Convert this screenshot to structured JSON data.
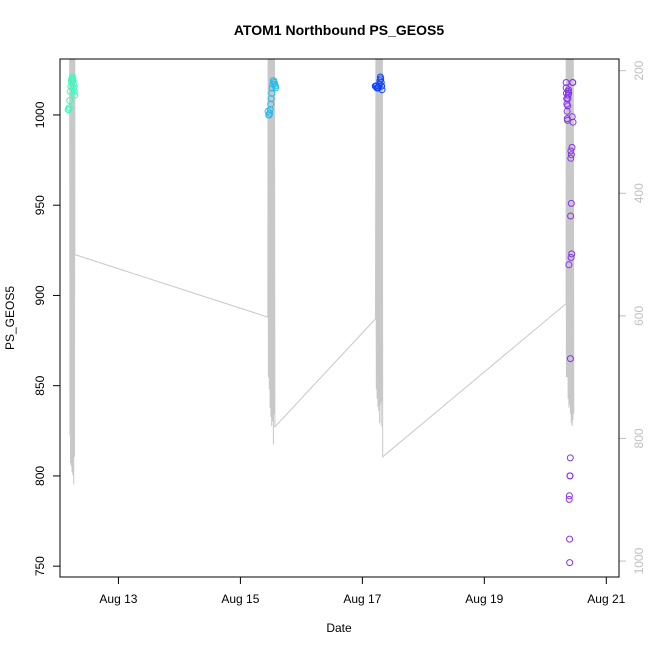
{
  "chart_data": {
    "type": "scatter",
    "title": "ATOM1 Northbound PS_GEOS5",
    "xlabel": "Date",
    "ylabel": "PS_GEOS5",
    "xlim": [
      "2015-08-12T01:00",
      "2015-08-21T05:00"
    ],
    "ylim": [
      744,
      1031
    ],
    "y_right_lim": [
      1026,
      181
    ],
    "x_tick_labels": [
      {
        "x": "2015-08-13T00:00",
        "label": "Aug 13"
      },
      {
        "x": "2015-08-15T00:00",
        "label": "Aug 15"
      },
      {
        "x": "2015-08-17T00:00",
        "label": "Aug 17"
      },
      {
        "x": "2015-08-19T00:00",
        "label": "Aug 19"
      },
      {
        "x": "2015-08-21T00:00",
        "label": "Aug 21"
      }
    ],
    "y_ticks": [
      750,
      800,
      850,
      900,
      950,
      1000
    ],
    "y_right_ticks": [
      200,
      400,
      600,
      800,
      1000
    ],
    "grid": false,
    "right_axis_color": "#c0c0c0",
    "line_series": {
      "color": "#c8c8c8",
      "points": [
        [
          "2015-08-12T04:48",
          181
        ],
        [
          "2015-08-12T04:53",
          795
        ],
        [
          "2015-08-12T04:58",
          181
        ],
        [
          "2015-08-12T05:07",
          840
        ],
        [
          "2015-08-12T05:17",
          181
        ],
        [
          "2015-08-12T05:24",
          845
        ],
        [
          "2015-08-12T05:34",
          181
        ],
        [
          "2015-08-12T05:43",
          855
        ],
        [
          "2015-08-12T05:55",
          181
        ],
        [
          "2015-08-12T06:05",
          860
        ],
        [
          "2015-08-12T06:14",
          181
        ],
        [
          "2015-08-12T06:24",
          875
        ],
        [
          "2015-08-12T06:34",
          181
        ],
        [
          "2015-08-12T06:43",
          830
        ],
        [
          "2015-08-12T06:50",
          181
        ],
        [
          "2015-08-12T06:53",
          500
        ],
        [
          "2015-08-15T10:48",
          602
        ],
        [
          "2015-08-15T10:53",
          181
        ],
        [
          "2015-08-15T11:02",
          700
        ],
        [
          "2015-08-15T11:12",
          181
        ],
        [
          "2015-08-15T11:22",
          720
        ],
        [
          "2015-08-15T11:31",
          181
        ],
        [
          "2015-08-15T11:41",
          750
        ],
        [
          "2015-08-15T11:50",
          181
        ],
        [
          "2015-08-15T12:00",
          765
        ],
        [
          "2015-08-15T12:10",
          181
        ],
        [
          "2015-08-15T12:19",
          780
        ],
        [
          "2015-08-15T12:29",
          181
        ],
        [
          "2015-08-15T12:38",
          772
        ],
        [
          "2015-08-15T12:48",
          181
        ],
        [
          "2015-08-15T12:58",
          810
        ],
        [
          "2015-08-15T13:07",
          181
        ],
        [
          "2015-08-15T13:17",
          760
        ],
        [
          "2015-08-15T13:26",
          181
        ],
        [
          "2015-08-15T13:34",
          781
        ],
        [
          "2015-08-17T05:10",
          605
        ],
        [
          "2015-08-17T05:19",
          181
        ],
        [
          "2015-08-17T05:29",
          720
        ],
        [
          "2015-08-17T05:38",
          181
        ],
        [
          "2015-08-17T05:48",
          735
        ],
        [
          "2015-08-17T05:58",
          181
        ],
        [
          "2015-08-17T06:07",
          748
        ],
        [
          "2015-08-17T06:17",
          181
        ],
        [
          "2015-08-17T06:26",
          755
        ],
        [
          "2015-08-17T06:36",
          181
        ],
        [
          "2015-08-17T06:46",
          775
        ],
        [
          "2015-08-17T06:55",
          181
        ],
        [
          "2015-08-17T07:05",
          745
        ],
        [
          "2015-08-17T07:14",
          181
        ],
        [
          "2015-08-17T07:24",
          780
        ],
        [
          "2015-08-17T07:34",
          181
        ],
        [
          "2015-08-17T07:43",
          740
        ],
        [
          "2015-08-17T07:53",
          181
        ],
        [
          "2015-08-17T08:00",
          830
        ],
        [
          "2015-08-20T08:10",
          580
        ],
        [
          "2015-08-20T08:14",
          181
        ],
        [
          "2015-08-20T08:19",
          700
        ],
        [
          "2015-08-20T08:29",
          181
        ],
        [
          "2015-08-20T08:38",
          700
        ],
        [
          "2015-08-20T08:48",
          181
        ],
        [
          "2015-08-20T08:58",
          735
        ],
        [
          "2015-08-20T09:07",
          181
        ],
        [
          "2015-08-20T09:17",
          750
        ],
        [
          "2015-08-20T09:26",
          181
        ],
        [
          "2015-08-20T09:36",
          745
        ],
        [
          "2015-08-20T09:46",
          181
        ],
        [
          "2015-08-20T09:55",
          760
        ],
        [
          "2015-08-20T10:05",
          181
        ],
        [
          "2015-08-20T10:14",
          775
        ],
        [
          "2015-08-20T10:24",
          181
        ],
        [
          "2015-08-20T10:34",
          780
        ],
        [
          "2015-08-20T10:43",
          181
        ],
        [
          "2015-08-20T10:53",
          770
        ],
        [
          "2015-08-20T11:02",
          181
        ],
        [
          "2015-08-20T11:12",
          760
        ]
      ]
    },
    "series": [
      {
        "color": "#33ffbb",
        "points": [
          [
            "2015-08-12T04:14",
            1003
          ],
          [
            "2015-08-12T04:26",
            1003
          ],
          [
            "2015-08-12T04:38",
            1004
          ],
          [
            "2015-08-12T04:50",
            1008
          ],
          [
            "2015-08-12T05:02",
            1013
          ],
          [
            "2015-08-12T05:17",
            1016
          ],
          [
            "2015-08-12T05:29",
            1019
          ],
          [
            "2015-08-12T05:41",
            1020
          ],
          [
            "2015-08-12T05:53",
            1021
          ],
          [
            "2015-08-12T06:02",
            1020
          ],
          [
            "2015-08-12T06:10",
            1019
          ],
          [
            "2015-08-12T06:19",
            1017
          ],
          [
            "2015-08-12T06:29",
            1015
          ],
          [
            "2015-08-12T06:38",
            1013
          ],
          [
            "2015-08-12T06:48",
            1011
          ]
        ]
      },
      {
        "color": "#22bbee",
        "points": [
          [
            "2015-08-15T10:55",
            1002
          ],
          [
            "2015-08-15T11:07",
            1000
          ],
          [
            "2015-08-15T11:19",
            1000
          ],
          [
            "2015-08-15T11:31",
            1001
          ],
          [
            "2015-08-15T11:43",
            1003
          ],
          [
            "2015-08-15T11:55",
            1006
          ],
          [
            "2015-08-15T12:07",
            1009
          ],
          [
            "2015-08-15T12:19",
            1012
          ],
          [
            "2015-08-15T12:31",
            1015
          ],
          [
            "2015-08-15T12:43",
            1017
          ],
          [
            "2015-08-15T12:55",
            1019
          ],
          [
            "2015-08-15T13:07",
            1019
          ],
          [
            "2015-08-15T13:19",
            1018
          ],
          [
            "2015-08-15T13:31",
            1017
          ],
          [
            "2015-08-15T13:43",
            1016
          ],
          [
            "2015-08-15T13:55",
            1015
          ]
        ]
      },
      {
        "color": "#1144ff",
        "points": [
          [
            "2015-08-17T05:05",
            1016
          ],
          [
            "2015-08-17T05:17",
            1016
          ],
          [
            "2015-08-17T05:29",
            1016
          ],
          [
            "2015-08-17T05:41",
            1015
          ],
          [
            "2015-08-17T05:53",
            1015
          ],
          [
            "2015-08-17T06:05",
            1015
          ],
          [
            "2015-08-17T06:17",
            1015
          ],
          [
            "2015-08-17T06:29",
            1016
          ],
          [
            "2015-08-17T06:41",
            1017
          ],
          [
            "2015-08-17T06:53",
            1019
          ],
          [
            "2015-08-17T07:05",
            1021
          ],
          [
            "2015-08-17T07:14",
            1020
          ],
          [
            "2015-08-17T07:24",
            1018
          ],
          [
            "2015-08-17T07:34",
            1016
          ],
          [
            "2015-08-17T07:43",
            1014
          ]
        ]
      },
      {
        "color": "#8833ee",
        "points": [
          [
            "2015-08-20T08:10",
            1018
          ],
          [
            "2015-08-20T08:14",
            1015
          ],
          [
            "2015-08-20T08:19",
            1012
          ],
          [
            "2015-08-20T08:24",
            1009
          ],
          [
            "2015-08-20T08:29",
            1006
          ],
          [
            "2015-08-20T08:34",
            1002
          ],
          [
            "2015-08-20T08:38",
            998
          ],
          [
            "2015-08-20T08:43",
            997
          ],
          [
            "2015-08-20T08:48",
            1005
          ],
          [
            "2015-08-20T08:53",
            1009
          ],
          [
            "2015-08-20T08:58",
            1011
          ],
          [
            "2015-08-20T09:02",
            1013
          ],
          [
            "2015-08-20T09:07",
            1014
          ],
          [
            "2015-08-20T09:12",
            1012
          ],
          [
            "2015-08-20T09:17",
            917
          ],
          [
            "2015-08-20T09:24",
            787
          ],
          [
            "2015-08-20T09:29",
            789
          ],
          [
            "2015-08-20T09:34",
            765
          ],
          [
            "2015-08-20T09:36",
            752
          ],
          [
            "2015-08-20T09:41",
            800
          ],
          [
            "2015-08-20T09:46",
            800
          ],
          [
            "2015-08-20T09:50",
            810
          ],
          [
            "2015-08-20T09:53",
            865
          ],
          [
            "2015-08-20T09:58",
            944
          ],
          [
            "2015-08-20T10:02",
            976
          ],
          [
            "2015-08-20T10:05",
            980
          ],
          [
            "2015-08-20T10:10",
            921
          ],
          [
            "2015-08-20T10:14",
            951
          ],
          [
            "2015-08-20T10:17",
            978
          ],
          [
            "2015-08-20T10:24",
            923
          ],
          [
            "2015-08-20T10:31",
            982
          ],
          [
            "2015-08-20T10:36",
            999
          ],
          [
            "2015-08-20T10:41",
            1018
          ],
          [
            "2015-08-20T10:48",
            1018
          ],
          [
            "2015-08-20T10:53",
            996
          ]
        ]
      }
    ]
  }
}
